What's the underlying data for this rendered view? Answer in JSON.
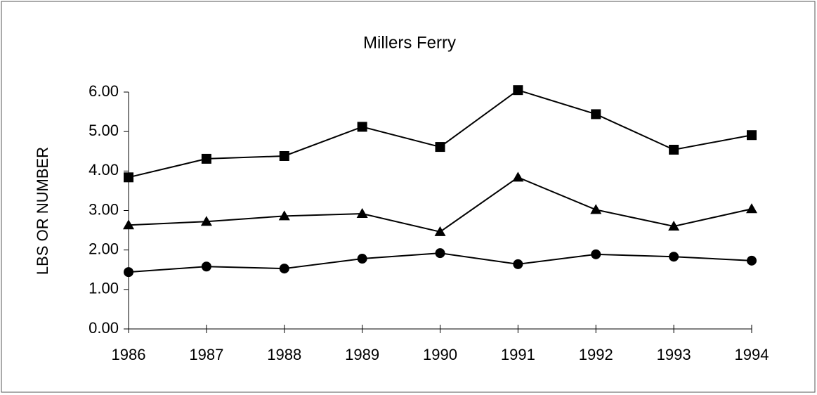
{
  "chart_data": {
    "type": "line",
    "title": "Millers Ferry",
    "y_label": "LBS OR NUMBER",
    "categories": [
      "1986",
      "1987",
      "1988",
      "1989",
      "1990",
      "1991",
      "1992",
      "1993",
      "1994"
    ],
    "series": [
      {
        "color": "#000000",
        "marker": "square",
        "values": [
          3.84,
          4.31,
          4.38,
          5.12,
          4.61,
          6.05,
          5.44,
          4.54,
          4.91
        ]
      },
      {
        "color": "#000000",
        "marker": "triangle",
        "values": [
          2.63,
          2.72,
          2.86,
          2.92,
          2.46,
          3.84,
          3.02,
          2.6,
          3.04
        ]
      },
      {
        "color": "#000000",
        "marker": "circle",
        "values": [
          1.44,
          1.58,
          1.53,
          1.78,
          1.92,
          1.64,
          1.89,
          1.83,
          1.73
        ]
      }
    ],
    "ylim": [
      0,
      6
    ],
    "yticks": [
      {
        "value": 0,
        "label": "0.00"
      },
      {
        "value": 1,
        "label": "1.00"
      },
      {
        "value": 2,
        "label": "2.00"
      },
      {
        "value": 3,
        "label": "3.00"
      },
      {
        "value": 4,
        "label": "4.00"
      },
      {
        "value": 5,
        "label": "5.00"
      },
      {
        "value": 6,
        "label": "6.00"
      }
    ],
    "grid": false
  }
}
